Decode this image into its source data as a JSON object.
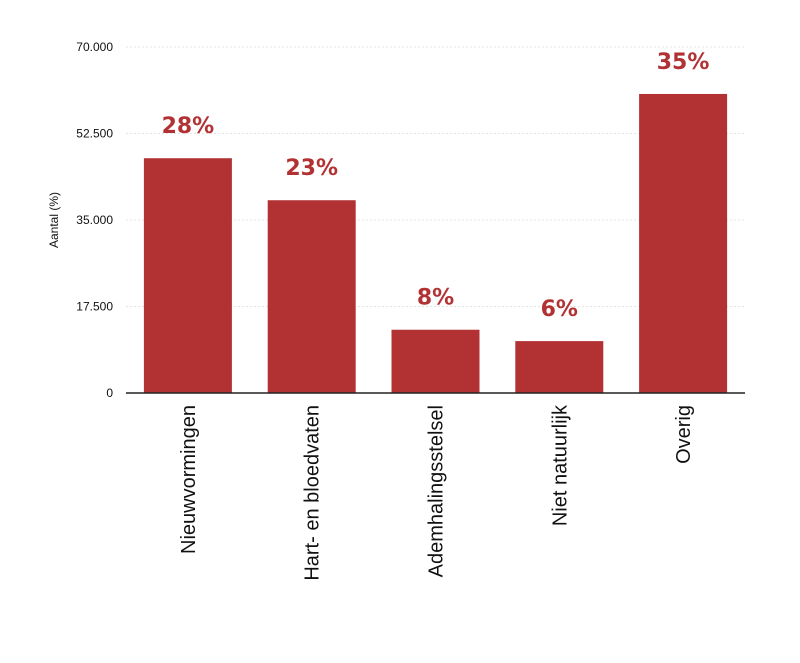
{
  "chart_data": {
    "type": "bar",
    "ylabel": "Aantal (%)",
    "xlabel": "",
    "ylim": [
      0,
      70000
    ],
    "yticks": [
      {
        "value": 0,
        "label": "0"
      },
      {
        "value": 17500,
        "label": "17.500"
      },
      {
        "value": 35000,
        "label": "35.000"
      },
      {
        "value": 52500,
        "label": "52.500"
      },
      {
        "value": 70000,
        "label": "70.000"
      }
    ],
    "categories": [
      "Nieuwvormingen",
      "Hart- en bloedvaten",
      "Ademhalingsstelsel",
      "Niet natuurlijk",
      "Overig"
    ],
    "values": [
      47500,
      39000,
      12800,
      10500,
      60500
    ],
    "data_labels": [
      "28%",
      "23%",
      "8%",
      "6%",
      "35%"
    ],
    "grid": true,
    "colors": {
      "bar": "#b23234",
      "label": "#b23234"
    }
  }
}
